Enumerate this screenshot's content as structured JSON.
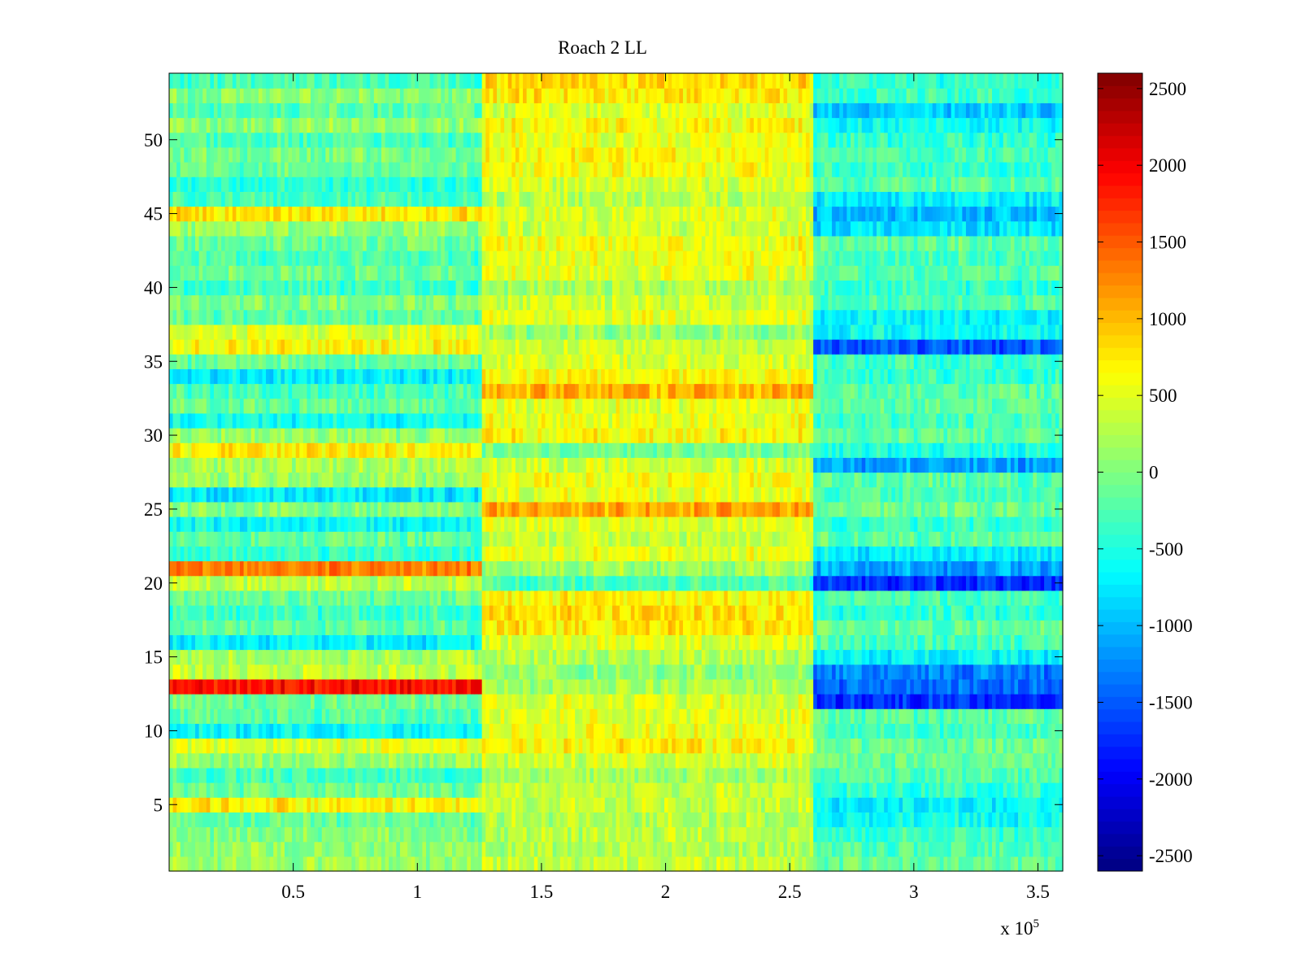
{
  "chart_data": {
    "type": "heatmap",
    "title": "Roach 2 LL",
    "xlabel": "",
    "ylabel": "",
    "x_multiplier_label": {
      "base": "x 10",
      "exponent": "5"
    },
    "xlim": [
      0,
      3.6
    ],
    "ylim": [
      0.5,
      54.5
    ],
    "xticks": [
      {
        "value": 0.5,
        "label": "0.5"
      },
      {
        "value": 1,
        "label": "1"
      },
      {
        "value": 1.5,
        "label": "1.5"
      },
      {
        "value": 2,
        "label": "2"
      },
      {
        "value": 2.5,
        "label": "2.5"
      },
      {
        "value": 3,
        "label": "3"
      },
      {
        "value": 3.5,
        "label": "3.5"
      }
    ],
    "yticks": [
      {
        "value": 5,
        "label": "5"
      },
      {
        "value": 10,
        "label": "10"
      },
      {
        "value": 15,
        "label": "15"
      },
      {
        "value": 20,
        "label": "20"
      },
      {
        "value": 25,
        "label": "25"
      },
      {
        "value": 30,
        "label": "30"
      },
      {
        "value": 35,
        "label": "35"
      },
      {
        "value": 40,
        "label": "40"
      },
      {
        "value": 45,
        "label": "45"
      },
      {
        "value": 50,
        "label": "50"
      }
    ],
    "n_rows": 54,
    "colormap": "jet",
    "colorbar": {
      "clim": [
        -2600,
        2600
      ],
      "ticks": [
        {
          "value": 2500,
          "label": "2500"
        },
        {
          "value": 2000,
          "label": "2000"
        },
        {
          "value": 1500,
          "label": "1500"
        },
        {
          "value": 1000,
          "label": "1000"
        },
        {
          "value": 500,
          "label": "500"
        },
        {
          "value": 0,
          "label": "0"
        },
        {
          "value": -500,
          "label": "-500"
        },
        {
          "value": -1000,
          "label": "-1000"
        },
        {
          "value": -1500,
          "label": "-1500"
        },
        {
          "value": -2000,
          "label": "-2000"
        },
        {
          "value": -2500,
          "label": "-2500"
        }
      ]
    },
    "segments": [
      {
        "x_start": 0.0,
        "x_end": 1.26
      },
      {
        "x_start": 1.26,
        "x_end": 2.6
      },
      {
        "x_start": 2.6,
        "x_end": 3.6
      }
    ],
    "row_means": [
      {
        "row": 1,
        "means": [
          150,
          350,
          -150
        ]
      },
      {
        "row": 2,
        "means": [
          100,
          250,
          -250
        ]
      },
      {
        "row": 3,
        "means": [
          0,
          300,
          -350
        ]
      },
      {
        "row": 4,
        "means": [
          -150,
          250,
          -600
        ]
      },
      {
        "row": 5,
        "means": [
          700,
          350,
          -700
        ]
      },
      {
        "row": 6,
        "means": [
          -100,
          300,
          -400
        ]
      },
      {
        "row": 7,
        "means": [
          -300,
          200,
          -250
        ]
      },
      {
        "row": 8,
        "means": [
          100,
          400,
          -100
        ]
      },
      {
        "row": 9,
        "means": [
          500,
          700,
          -100
        ]
      },
      {
        "row": 10,
        "means": [
          -650,
          550,
          -300
        ]
      },
      {
        "row": 11,
        "means": [
          -200,
          500,
          -200
        ]
      },
      {
        "row": 12,
        "means": [
          -100,
          450,
          -1700
        ]
      },
      {
        "row": 13,
        "means": [
          1900,
          200,
          -1400
        ]
      },
      {
        "row": 14,
        "means": [
          350,
          100,
          -1300
        ]
      },
      {
        "row": 15,
        "means": [
          200,
          250,
          -700
        ]
      },
      {
        "row": 16,
        "means": [
          -700,
          450,
          -300
        ]
      },
      {
        "row": 17,
        "means": [
          -150,
          750,
          -150
        ]
      },
      {
        "row": 18,
        "means": [
          -350,
          800,
          -400
        ]
      },
      {
        "row": 19,
        "means": [
          -100,
          650,
          -300
        ]
      },
      {
        "row": 20,
        "means": [
          300,
          -300,
          -1700
        ]
      },
      {
        "row": 21,
        "means": [
          1300,
          150,
          -1100
        ]
      },
      {
        "row": 22,
        "means": [
          -400,
          500,
          -700
        ]
      },
      {
        "row": 23,
        "means": [
          -150,
          350,
          -200
        ]
      },
      {
        "row": 24,
        "means": [
          -600,
          450,
          -350
        ]
      },
      {
        "row": 25,
        "means": [
          0,
          1100,
          -100
        ]
      },
      {
        "row": 26,
        "means": [
          -750,
          500,
          -300
        ]
      },
      {
        "row": 27,
        "means": [
          150,
          600,
          -200
        ]
      },
      {
        "row": 28,
        "means": [
          200,
          400,
          -1100
        ]
      },
      {
        "row": 29,
        "means": [
          700,
          -50,
          -500
        ]
      },
      {
        "row": 30,
        "means": [
          100,
          650,
          -200
        ]
      },
      {
        "row": 31,
        "means": [
          -600,
          550,
          -300
        ]
      },
      {
        "row": 32,
        "means": [
          -150,
          500,
          -150
        ]
      },
      {
        "row": 33,
        "means": [
          -300,
          1050,
          -200
        ]
      },
      {
        "row": 34,
        "means": [
          -700,
          650,
          -400
        ]
      },
      {
        "row": 35,
        "means": [
          -150,
          450,
          -350
        ]
      },
      {
        "row": 36,
        "means": [
          650,
          350,
          -1500
        ]
      },
      {
        "row": 37,
        "means": [
          500,
          100,
          -600
        ]
      },
      {
        "row": 38,
        "means": [
          -200,
          500,
          -700
        ]
      },
      {
        "row": 39,
        "means": [
          0,
          400,
          -250
        ]
      },
      {
        "row": 40,
        "means": [
          -350,
          200,
          -400
        ]
      },
      {
        "row": 41,
        "means": [
          -100,
          500,
          -200
        ]
      },
      {
        "row": 42,
        "means": [
          -300,
          550,
          -300
        ]
      },
      {
        "row": 43,
        "means": [
          -100,
          600,
          -150
        ]
      },
      {
        "row": 44,
        "means": [
          100,
          400,
          -800
        ]
      },
      {
        "row": 45,
        "means": [
          750,
          450,
          -1000
        ]
      },
      {
        "row": 46,
        "means": [
          -300,
          300,
          -700
        ]
      },
      {
        "row": 47,
        "means": [
          -450,
          450,
          -200
        ]
      },
      {
        "row": 48,
        "means": [
          -150,
          600,
          -400
        ]
      },
      {
        "row": 49,
        "means": [
          -50,
          650,
          -300
        ]
      },
      {
        "row": 50,
        "means": [
          -300,
          550,
          -400
        ]
      },
      {
        "row": 51,
        "means": [
          100,
          650,
          -600
        ]
      },
      {
        "row": 52,
        "means": [
          -200,
          450,
          -900
        ]
      },
      {
        "row": 53,
        "means": [
          50,
          750,
          -350
        ]
      },
      {
        "row": 54,
        "means": [
          -300,
          850,
          -400
        ]
      }
    ]
  }
}
